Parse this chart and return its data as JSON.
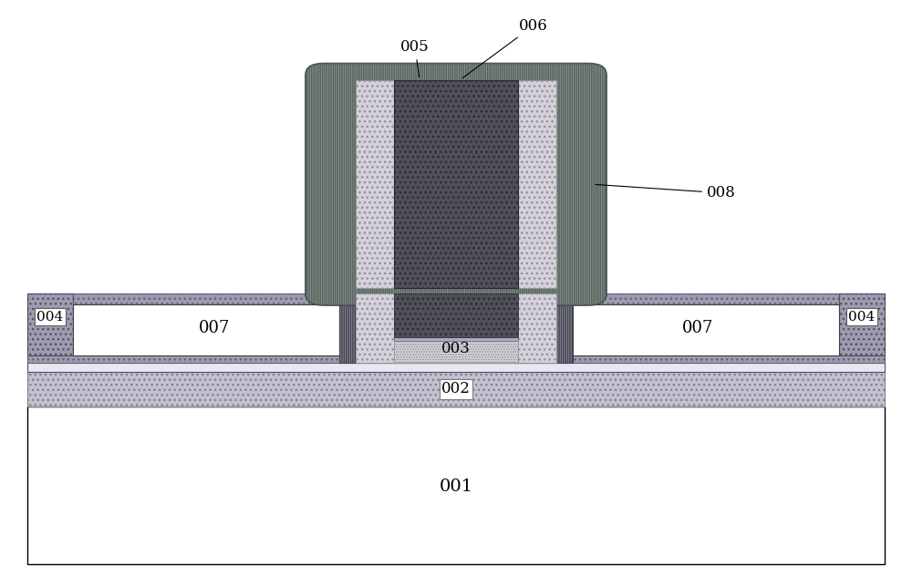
{
  "fig_width": 10.0,
  "fig_height": 6.32,
  "dpi": 100,
  "bg_color": "#ffffff",
  "colors": {
    "substrate_001": "#ffffff",
    "layer_002_face": "#c4c0d0",
    "layer_003_face": "#ffffff",
    "wide_bar_face": "#a09ab0",
    "block_004_face": "#a09ab0",
    "white_007": "#ffffff",
    "gate_cap_face": "#8a8a98",
    "gate_dark_core": "#505058",
    "gate_spacer": "#d4d0dc",
    "gate_oxide_light": "#dcdae4",
    "gate_oxide_hatch": "#c8c4d4"
  }
}
